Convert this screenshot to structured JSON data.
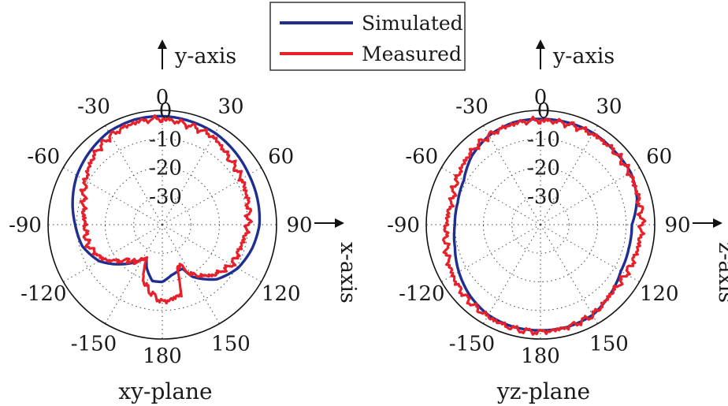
{
  "legend": {
    "position": "top-center",
    "items": [
      {
        "label": "Simulated",
        "color": "#1f2f8f"
      },
      {
        "label": "Measured",
        "color": "#e8202a"
      }
    ]
  },
  "chart_data": [
    {
      "type": "line",
      "polar": true,
      "plane_label": "xy-plane",
      "horizontal_axis_label": "x-axis",
      "vertical_axis_label": "y-axis",
      "radial_labels": [
        "0",
        "-10",
        "-20",
        "-30"
      ],
      "radial_range_dB": [
        -40,
        0
      ],
      "angle_tick_labels": {
        "0": "0",
        "30": "30",
        "60": "60",
        "90": "90",
        "120": "120",
        "150": "150",
        "180": "180",
        "-150": "-150",
        "-120": "-120",
        "-90": "-90",
        "-60": "-60",
        "-30": "-30"
      },
      "grid": true,
      "series": [
        {
          "name": "Simulated",
          "color": "#1f2f8f",
          "angles_deg": [
            0,
            15,
            30,
            45,
            60,
            75,
            90,
            105,
            120,
            135,
            150,
            155,
            160,
            170,
            180,
            190,
            200,
            205,
            210,
            225,
            240,
            255,
            270,
            285,
            300,
            315,
            330,
            345,
            360
          ],
          "gain_dB": [
            -2,
            -2.5,
            -3,
            -4,
            -5,
            -5.5,
            -6,
            -7.5,
            -9.5,
            -13,
            -19,
            -23,
            -23,
            -22,
            -20,
            -20,
            -24,
            -27,
            -26,
            -20.5,
            -14.5,
            -11,
            -9.5,
            -7.5,
            -5.5,
            -4,
            -2.5,
            -2,
            -2
          ]
        },
        {
          "name": "Measured",
          "color": "#e8202a",
          "angles_deg": [
            0,
            15,
            30,
            45,
            60,
            75,
            90,
            105,
            120,
            135,
            150,
            155,
            160,
            165,
            170,
            180,
            190,
            200,
            205,
            210,
            215,
            225,
            240,
            255,
            270,
            285,
            300,
            315,
            330,
            345,
            360
          ],
          "gain_dB": [
            -3,
            -4,
            -4.5,
            -7,
            -8,
            -9,
            -10,
            -11.5,
            -12,
            -15,
            -20,
            -24,
            -25,
            -15,
            -14,
            -13,
            -16,
            -20,
            -27,
            -26,
            -24,
            -22.5,
            -16,
            -13,
            -13,
            -11.5,
            -9,
            -6,
            -4,
            -3,
            -3
          ]
        }
      ]
    },
    {
      "type": "line",
      "polar": true,
      "plane_label": "yz-plane",
      "horizontal_axis_label": "z-axis",
      "vertical_axis_label": "y-axis",
      "radial_labels": [
        "0",
        "-10",
        "-20",
        "-30"
      ],
      "radial_range_dB": [
        -40,
        0
      ],
      "angle_tick_labels": {
        "0": "0",
        "30": "30",
        "60": "60",
        "90": "90",
        "120": "120",
        "150": "150",
        "180": "180",
        "-150": "-150",
        "-120": "-120",
        "-90": "-90",
        "-60": "-60",
        "-30": "-30"
      },
      "grid": true,
      "series": [
        {
          "name": "Simulated",
          "color": "#1f2f8f",
          "angles_deg": [
            0,
            15,
            30,
            45,
            60,
            75,
            90,
            105,
            120,
            135,
            150,
            165,
            180,
            195,
            210,
            225,
            240,
            255,
            270,
            285,
            300,
            315,
            330,
            345,
            360
          ],
          "gain_dB": [
            -3,
            -3,
            -3,
            -3.5,
            -3.5,
            -5,
            -8,
            -8,
            -7.5,
            -5.5,
            -3.5,
            -3,
            -3,
            -3,
            -3.5,
            -5,
            -7,
            -9,
            -10,
            -10,
            -9,
            -6,
            -4,
            -3,
            -3
          ]
        },
        {
          "name": "Measured",
          "color": "#e8202a",
          "angles_deg": [
            0,
            15,
            30,
            45,
            60,
            75,
            90,
            105,
            120,
            135,
            150,
            165,
            180,
            195,
            210,
            225,
            240,
            255,
            270,
            285,
            300,
            315,
            330,
            345,
            360
          ],
          "gain_dB": [
            -3.5,
            -3.5,
            -3.5,
            -3.5,
            -4,
            -4.5,
            -4.5,
            -5,
            -5.5,
            -5.5,
            -3.5,
            -3,
            -2.5,
            -2.5,
            -3,
            -3.5,
            -4.5,
            -6,
            -7,
            -8,
            -6.5,
            -5,
            -4,
            -3.5,
            -3.5
          ]
        }
      ]
    }
  ]
}
